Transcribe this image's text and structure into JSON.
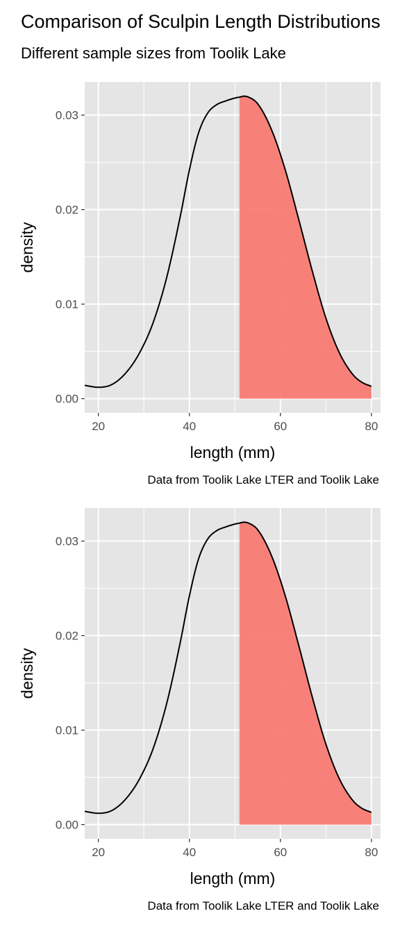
{
  "figure": {
    "title": "Comparison of Sculpin Length Distributions",
    "subtitle": "Different sample sizes from Toolik Lake"
  },
  "colors": {
    "panel_background": "#e5e5e5",
    "grid": "#ffffff",
    "fill": "#f8766d",
    "curve": "#000000",
    "tick_text": "#4d4d4d"
  },
  "chart_data": [
    {
      "type": "area",
      "subtype": "density",
      "xlabel": "length (mm)",
      "ylabel": "density",
      "caption": "Data from Toolik Lake LTER and Toolik Lake",
      "xlim": [
        17,
        82
      ],
      "ylim": [
        -0.0015,
        0.0335
      ],
      "x_ticks": [
        20,
        40,
        60,
        80
      ],
      "y_ticks": [
        0.0,
        0.01,
        0.02,
        0.03
      ],
      "x_tick_labels": [
        "20",
        "40",
        "60",
        "80"
      ],
      "y_tick_labels": [
        "0.00",
        "0.01",
        "0.02",
        "0.03"
      ],
      "grid": true,
      "shaded_from_x": 51,
      "series": [
        {
          "x": [
            17,
            20,
            23,
            26,
            29,
            32,
            35,
            38,
            40,
            42,
            44,
            46,
            48,
            50,
            51,
            52,
            53,
            55,
            58,
            61,
            64,
            67,
            70,
            73,
            76,
            78,
            80
          ],
          "y": [
            0.0014,
            0.0012,
            0.0015,
            0.0027,
            0.0048,
            0.008,
            0.0128,
            0.0193,
            0.0242,
            0.0281,
            0.0302,
            0.0311,
            0.0315,
            0.0318,
            0.0319,
            0.032,
            0.0319,
            0.0312,
            0.0285,
            0.0243,
            0.019,
            0.0135,
            0.0085,
            0.0048,
            0.0025,
            0.0017,
            0.0013
          ]
        }
      ]
    },
    {
      "type": "area",
      "subtype": "density",
      "xlabel": "length (mm)",
      "ylabel": "density",
      "caption": "Data from Toolik Lake LTER and Toolik Lake",
      "xlim": [
        17,
        82
      ],
      "ylim": [
        -0.0015,
        0.0335
      ],
      "x_ticks": [
        20,
        40,
        60,
        80
      ],
      "y_ticks": [
        0.0,
        0.01,
        0.02,
        0.03
      ],
      "x_tick_labels": [
        "20",
        "40",
        "60",
        "80"
      ],
      "y_tick_labels": [
        "0.00",
        "0.01",
        "0.02",
        "0.03"
      ],
      "grid": true,
      "shaded_from_x": 51,
      "series": [
        {
          "x": [
            17,
            20,
            23,
            26,
            29,
            32,
            35,
            38,
            40,
            42,
            44,
            46,
            48,
            50,
            51,
            52,
            53,
            55,
            58,
            61,
            64,
            67,
            70,
            73,
            76,
            78,
            80
          ],
          "y": [
            0.0014,
            0.0012,
            0.0015,
            0.0027,
            0.0048,
            0.008,
            0.0128,
            0.0193,
            0.0242,
            0.0281,
            0.0302,
            0.0311,
            0.0315,
            0.0318,
            0.0319,
            0.032,
            0.0319,
            0.0312,
            0.0285,
            0.0243,
            0.019,
            0.0135,
            0.0085,
            0.0048,
            0.0025,
            0.0017,
            0.0013
          ]
        }
      ]
    }
  ]
}
